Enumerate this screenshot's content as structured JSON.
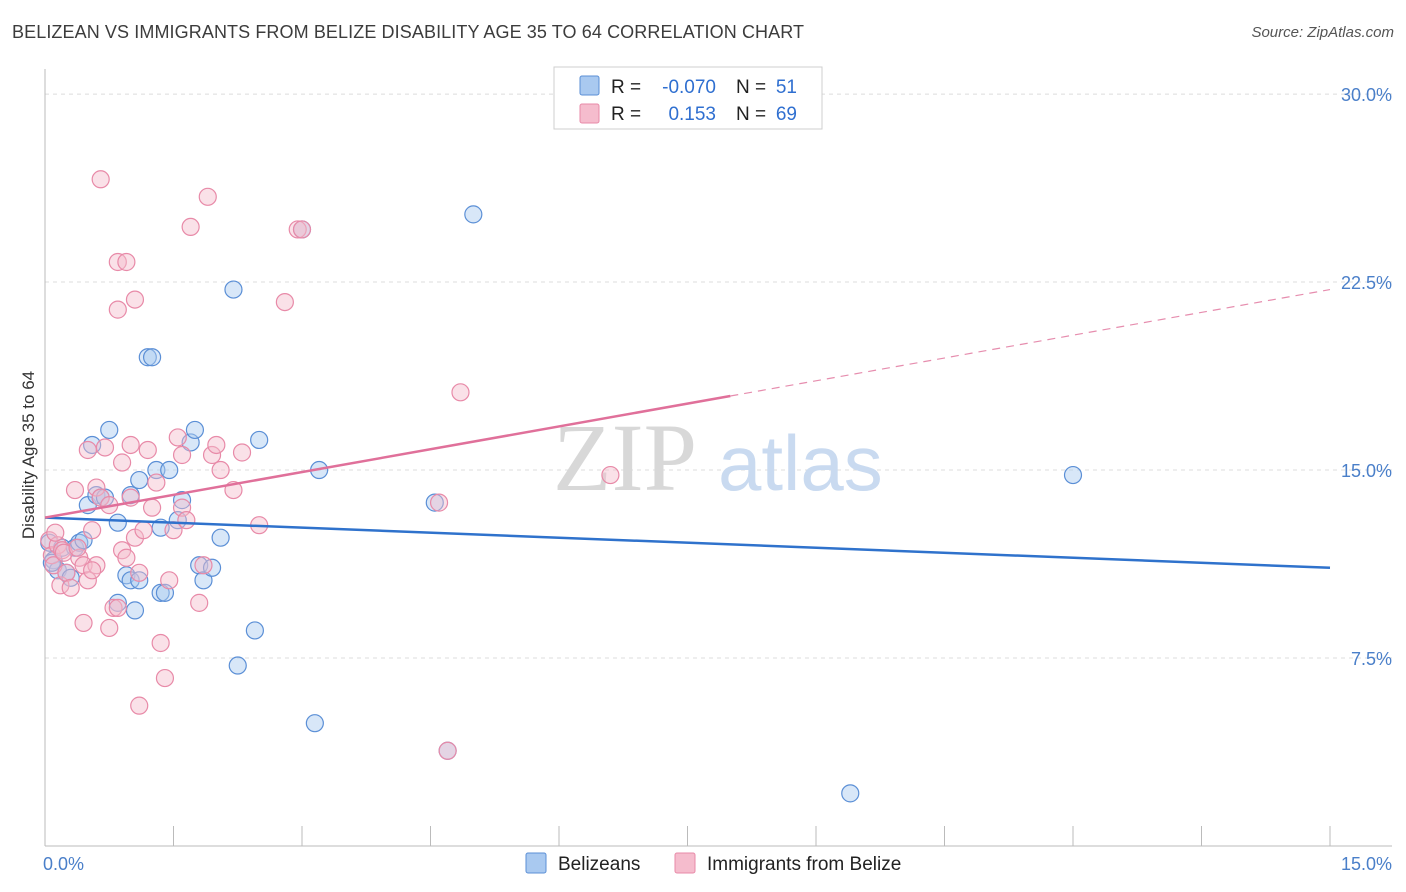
{
  "title": "BELIZEAN VS IMMIGRANTS FROM BELIZE DISABILITY AGE 35 TO 64 CORRELATION CHART",
  "source": "Source: ZipAtlas.com",
  "watermark": {
    "zip": "ZIP",
    "atlas": "atlas"
  },
  "colors": {
    "blue_fill": "#a9c9f0",
    "blue_stroke": "#5b8fd6",
    "blue_line": "#2f72cc",
    "pink_fill": "#f5bccd",
    "pink_stroke": "#e88aa8",
    "pink_line": "#e0709a",
    "tick_label": "#4a7fc9",
    "grid": "#dcdcdc"
  },
  "legend": {
    "rows": [
      {
        "r_label": "R =",
        "r_value": "-0.070",
        "n_label": "N =",
        "n_value": "51",
        "color": "blue"
      },
      {
        "r_label": "R =",
        "r_value": "0.153",
        "n_label": "N =",
        "n_value": "69",
        "color": "pink"
      }
    ]
  },
  "chart_data": {
    "type": "scatter",
    "title": "BELIZEAN VS IMMIGRANTS FROM BELIZE DISABILITY AGE 35 TO 64 CORRELATION CHART",
    "xlabel": "",
    "ylabel": "Disability Age 35 to 64",
    "xlim": [
      0,
      15
    ],
    "ylim": [
      0,
      31
    ],
    "x_tick_labels": [
      "0.0%",
      "15.0%"
    ],
    "y_ticks": [
      7.5,
      15.0,
      22.5,
      30.0
    ],
    "y_tick_labels": [
      "7.5%",
      "15.0%",
      "22.5%",
      "30.0%"
    ],
    "series": [
      {
        "name": "Belizeans",
        "color": "blue",
        "trend": {
          "x": [
            0,
            15
          ],
          "y": [
            13.1,
            11.1
          ],
          "dashed_from": null
        },
        "points": [
          [
            0.05,
            12.1
          ],
          [
            0.1,
            11.4
          ],
          [
            0.15,
            11.0
          ],
          [
            0.2,
            11.9
          ],
          [
            0.25,
            10.9
          ],
          [
            0.35,
            11.9
          ],
          [
            0.4,
            12.1
          ],
          [
            0.5,
            13.6
          ],
          [
            0.55,
            16.0
          ],
          [
            0.6,
            14.0
          ],
          [
            0.65,
            13.9
          ],
          [
            0.75,
            16.6
          ],
          [
            0.85,
            12.9
          ],
          [
            0.85,
            9.7
          ],
          [
            0.95,
            10.8
          ],
          [
            1.0,
            10.6
          ],
          [
            1.05,
            9.4
          ],
          [
            1.1,
            10.6
          ],
          [
            1.1,
            14.6
          ],
          [
            1.2,
            19.5
          ],
          [
            1.25,
            19.5
          ],
          [
            1.3,
            15.0
          ],
          [
            1.35,
            12.7
          ],
          [
            1.35,
            10.1
          ],
          [
            1.4,
            10.1
          ],
          [
            1.45,
            15.0
          ],
          [
            1.55,
            13.0
          ],
          [
            1.6,
            13.8
          ],
          [
            1.7,
            16.1
          ],
          [
            1.75,
            16.6
          ],
          [
            1.8,
            11.2
          ],
          [
            1.85,
            10.6
          ],
          [
            1.95,
            11.1
          ],
          [
            2.05,
            12.3
          ],
          [
            2.2,
            22.2
          ],
          [
            2.25,
            7.2
          ],
          [
            2.45,
            8.6
          ],
          [
            2.5,
            16.2
          ],
          [
            3.0,
            24.6
          ],
          [
            3.15,
            4.9
          ],
          [
            3.2,
            15.0
          ],
          [
            4.55,
            13.7
          ],
          [
            4.7,
            3.8
          ],
          [
            5.0,
            25.2
          ],
          [
            9.4,
            2.1
          ],
          [
            12.0,
            14.8
          ],
          [
            0.08,
            11.3
          ],
          [
            0.3,
            10.7
          ],
          [
            0.45,
            12.2
          ],
          [
            1.0,
            14.0
          ],
          [
            0.7,
            13.9
          ]
        ]
      },
      {
        "name": "Immigrants from Belize",
        "color": "pink",
        "trend": {
          "x": [
            0,
            15
          ],
          "y": [
            13.1,
            22.2
          ],
          "dashed_from": 8.0
        },
        "points": [
          [
            0.05,
            12.2
          ],
          [
            0.08,
            11.6
          ],
          [
            0.1,
            11.2
          ],
          [
            0.15,
            12.0
          ],
          [
            0.18,
            10.4
          ],
          [
            0.2,
            11.8
          ],
          [
            0.25,
            10.9
          ],
          [
            0.3,
            10.3
          ],
          [
            0.35,
            14.2
          ],
          [
            0.4,
            11.5
          ],
          [
            0.45,
            11.2
          ],
          [
            0.45,
            8.9
          ],
          [
            0.5,
            10.6
          ],
          [
            0.5,
            15.8
          ],
          [
            0.55,
            12.6
          ],
          [
            0.6,
            11.2
          ],
          [
            0.6,
            14.3
          ],
          [
            0.65,
            26.6
          ],
          [
            0.65,
            13.9
          ],
          [
            0.7,
            15.9
          ],
          [
            0.75,
            8.7
          ],
          [
            0.8,
            9.5
          ],
          [
            0.85,
            9.5
          ],
          [
            0.85,
            21.4
          ],
          [
            0.85,
            23.3
          ],
          [
            0.9,
            11.8
          ],
          [
            0.9,
            15.3
          ],
          [
            0.95,
            11.5
          ],
          [
            0.95,
            23.3
          ],
          [
            1.0,
            13.9
          ],
          [
            1.0,
            16.0
          ],
          [
            1.05,
            12.3
          ],
          [
            1.05,
            21.8
          ],
          [
            1.1,
            5.6
          ],
          [
            1.15,
            12.6
          ],
          [
            1.2,
            15.8
          ],
          [
            1.25,
            13.5
          ],
          [
            1.3,
            14.5
          ],
          [
            1.35,
            8.1
          ],
          [
            1.4,
            6.7
          ],
          [
            1.45,
            10.6
          ],
          [
            1.5,
            12.6
          ],
          [
            1.55,
            16.3
          ],
          [
            1.6,
            15.6
          ],
          [
            1.6,
            13.5
          ],
          [
            1.65,
            13.0
          ],
          [
            1.7,
            24.7
          ],
          [
            1.8,
            9.7
          ],
          [
            1.85,
            11.2
          ],
          [
            1.9,
            25.9
          ],
          [
            1.95,
            15.6
          ],
          [
            2.0,
            16.0
          ],
          [
            2.05,
            15.0
          ],
          [
            2.2,
            14.2
          ],
          [
            2.3,
            15.7
          ],
          [
            2.5,
            12.8
          ],
          [
            2.8,
            21.7
          ],
          [
            2.95,
            24.6
          ],
          [
            3.0,
            24.6
          ],
          [
            4.6,
            13.7
          ],
          [
            4.7,
            3.8
          ],
          [
            4.85,
            18.1
          ],
          [
            6.6,
            14.8
          ],
          [
            0.12,
            12.5
          ],
          [
            0.22,
            11.7
          ],
          [
            0.38,
            11.9
          ],
          [
            0.55,
            11.0
          ],
          [
            0.75,
            13.6
          ],
          [
            1.1,
            10.9
          ]
        ]
      }
    ]
  },
  "bottom_legend": {
    "items": [
      {
        "label": "Belizeans",
        "color": "blue"
      },
      {
        "label": "Immigrants from Belize",
        "color": "pink"
      }
    ]
  }
}
